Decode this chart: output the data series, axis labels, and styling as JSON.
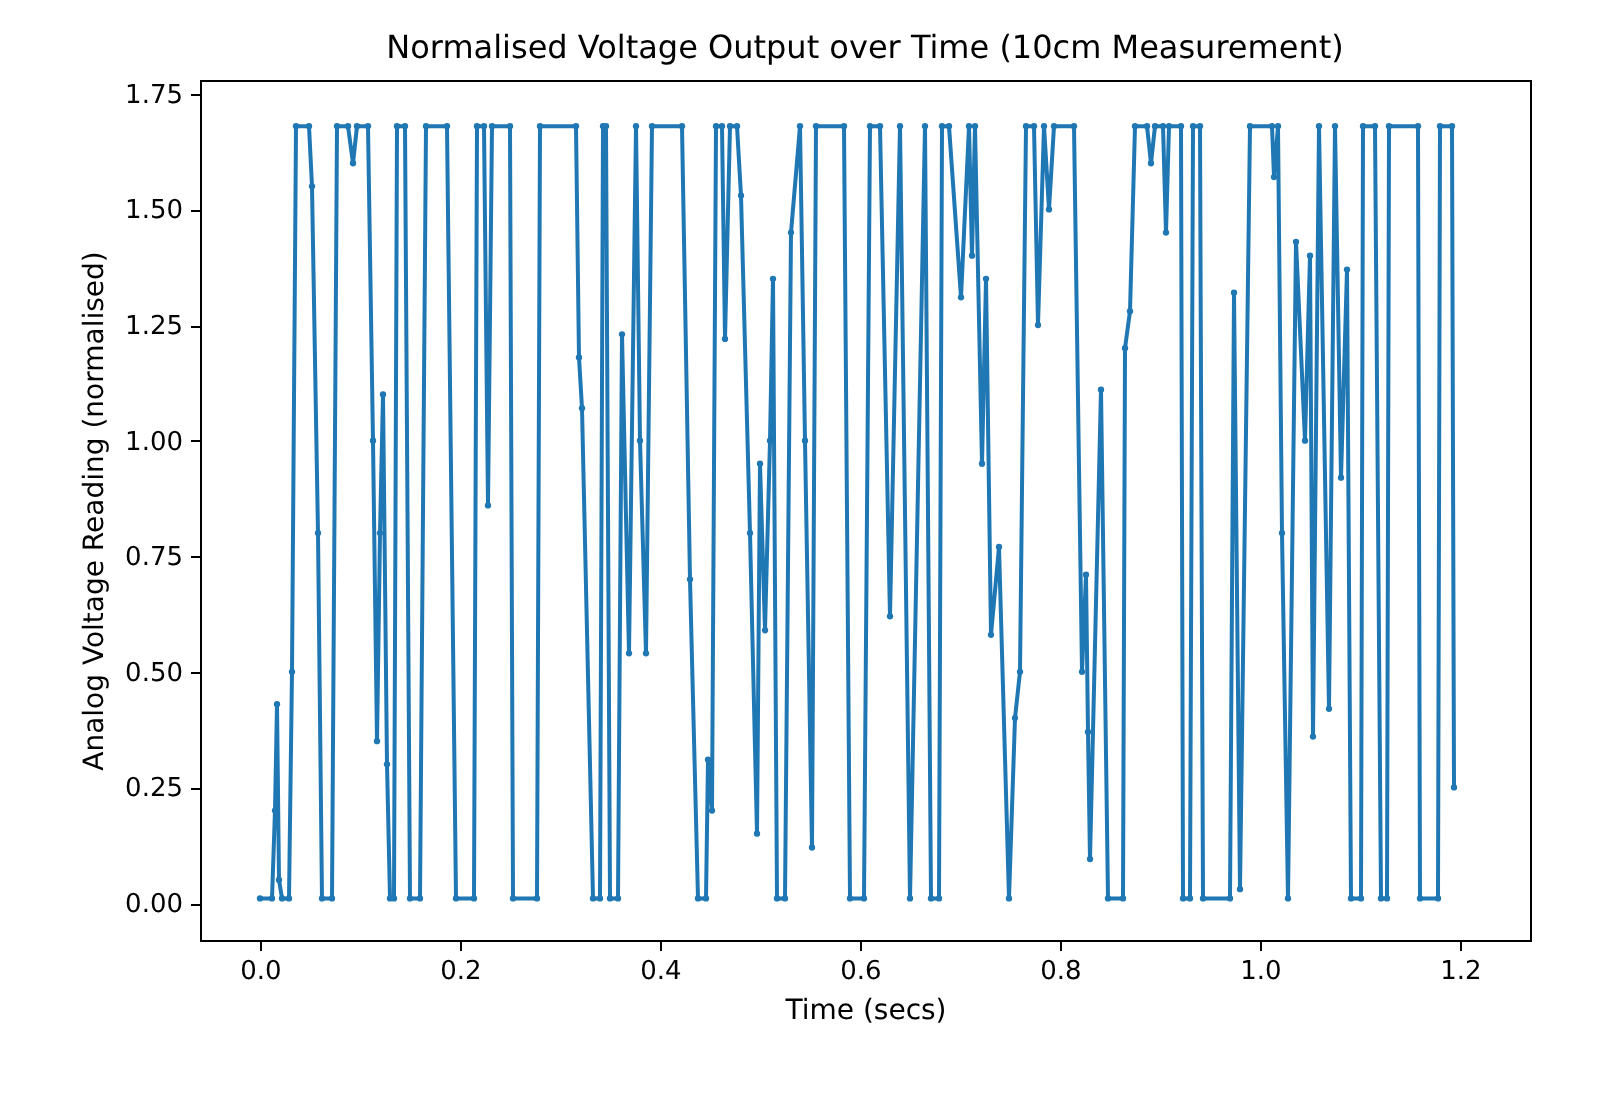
{
  "chart_data": {
    "type": "line",
    "title": "Normalised Voltage Output over Time (10cm Measurement)",
    "xlabel": "Time (secs)",
    "ylabel": "Analog Voltage Reading (normalised)",
    "xlim": [
      -0.06,
      1.27
    ],
    "ylim": [
      -0.08,
      1.78
    ],
    "xticks": [
      {
        "value": 0,
        "label": "0.0"
      },
      {
        "value": 0.2,
        "label": "0.2"
      },
      {
        "value": 0.4,
        "label": "0.4"
      },
      {
        "value": 0.6,
        "label": "0.6"
      },
      {
        "value": 0.8,
        "label": "0.8"
      },
      {
        "value": 1,
        "label": "1.0"
      },
      {
        "value": 1.2,
        "label": "1.2"
      }
    ],
    "yticks": [
      {
        "value": 0,
        "label": "0.00"
      },
      {
        "value": 0.25,
        "label": "0.25"
      },
      {
        "value": 0.5,
        "label": "0.50"
      },
      {
        "value": 0.75,
        "label": "0.75"
      },
      {
        "value": 1,
        "label": "1.00"
      },
      {
        "value": 1.25,
        "label": "1.25"
      },
      {
        "value": 1.5,
        "label": "1.50"
      },
      {
        "value": 1.75,
        "label": "1.75"
      }
    ],
    "grid": false,
    "marker": "circle",
    "line_style": "solid",
    "series": [
      {
        "color": "#1f77b4",
        "x": [
          0.0,
          0.012,
          0.015,
          0.017,
          0.019,
          0.022,
          0.029,
          0.032,
          0.036,
          0.049,
          0.052,
          0.058,
          0.062,
          0.072,
          0.077,
          0.088,
          0.093,
          0.097,
          0.108,
          0.113,
          0.117,
          0.12,
          0.123,
          0.127,
          0.13,
          0.134,
          0.137,
          0.145,
          0.15,
          0.16,
          0.166,
          0.187,
          0.196,
          0.214,
          0.217,
          0.224,
          0.228,
          0.232,
          0.25,
          0.253,
          0.277,
          0.28,
          0.316,
          0.319,
          0.322,
          0.333,
          0.34,
          0.343,
          0.346,
          0.35,
          0.358,
          0.362,
          0.369,
          0.376,
          0.38,
          0.386,
          0.392,
          0.422,
          0.43,
          0.438,
          0.446,
          0.448,
          0.452,
          0.456,
          0.462,
          0.465,
          0.47,
          0.477,
          0.481,
          0.49,
          0.497,
          0.5,
          0.505,
          0.51,
          0.513,
          0.517,
          0.525,
          0.531,
          0.54,
          0.545,
          0.552,
          0.556,
          0.584,
          0.59,
          0.604,
          0.61,
          0.62,
          0.63,
          0.64,
          0.65,
          0.665,
          0.671,
          0.679,
          0.682,
          0.689,
          0.701,
          0.709,
          0.712,
          0.715,
          0.722,
          0.726,
          0.731,
          0.739,
          0.749,
          0.755,
          0.76,
          0.766,
          0.774,
          0.778,
          0.784,
          0.789,
          0.794,
          0.814,
          0.822,
          0.826,
          0.828,
          0.83,
          0.841,
          0.848,
          0.863,
          0.865,
          0.87,
          0.875,
          0.887,
          0.891,
          0.895,
          0.903,
          0.906,
          0.909,
          0.921,
          0.923,
          0.93,
          0.933,
          0.94,
          0.943,
          0.97,
          0.974,
          0.98,
          0.99,
          1.012,
          1.014,
          1.018,
          1.022,
          1.028,
          1.036,
          1.045,
          1.05,
          1.053,
          1.059,
          1.069,
          1.075,
          1.081,
          1.087,
          1.091,
          1.101,
          1.103,
          1.115,
          1.121,
          1.127,
          1.129,
          1.158,
          1.16,
          1.178,
          1.18,
          1.192,
          1.194
        ],
        "values": [
          0.01,
          0.01,
          0.2,
          0.43,
          0.05,
          0.01,
          0.01,
          0.5,
          1.68,
          1.68,
          1.55,
          0.8,
          0.01,
          0.01,
          1.68,
          1.68,
          1.6,
          1.68,
          1.68,
          1.0,
          0.35,
          0.8,
          1.1,
          0.3,
          0.01,
          0.01,
          1.68,
          1.68,
          0.01,
          0.01,
          1.68,
          1.68,
          0.01,
          0.01,
          1.68,
          1.68,
          0.86,
          1.68,
          1.68,
          0.01,
          0.01,
          1.68,
          1.68,
          1.18,
          1.07,
          0.01,
          0.01,
          1.68,
          1.68,
          0.01,
          0.01,
          1.23,
          0.54,
          1.68,
          1.0,
          0.54,
          1.68,
          1.68,
          0.7,
          0.01,
          0.01,
          0.31,
          0.2,
          1.68,
          1.68,
          1.22,
          1.68,
          1.68,
          1.53,
          0.8,
          0.15,
          0.95,
          0.59,
          1.0,
          1.35,
          0.01,
          0.01,
          1.45,
          1.68,
          1.0,
          0.12,
          1.68,
          1.68,
          0.01,
          0.01,
          1.68,
          1.68,
          0.62,
          1.68,
          0.01,
          1.68,
          0.01,
          0.01,
          1.68,
          1.68,
          1.31,
          1.68,
          1.4,
          1.68,
          0.95,
          1.35,
          0.58,
          0.77,
          0.01,
          0.4,
          0.5,
          1.68,
          1.68,
          1.25,
          1.68,
          1.5,
          1.68,
          1.68,
          0.5,
          0.71,
          0.37,
          0.095,
          1.11,
          0.01,
          0.01,
          1.2,
          1.28,
          1.68,
          1.68,
          1.6,
          1.68,
          1.68,
          1.45,
          1.68,
          1.68,
          0.01,
          0.01,
          1.68,
          1.68,
          0.01,
          0.01,
          1.32,
          0.03,
          1.68,
          1.68,
          1.57,
          1.68,
          0.8,
          0.01,
          1.43,
          1.0,
          1.4,
          0.36,
          1.68,
          0.42,
          1.68,
          0.92,
          1.37,
          0.01,
          0.01,
          1.68,
          1.68,
          0.01,
          0.01,
          1.68,
          1.68,
          0.01,
          0.01,
          1.68,
          1.68,
          0.25
        ]
      }
    ]
  }
}
